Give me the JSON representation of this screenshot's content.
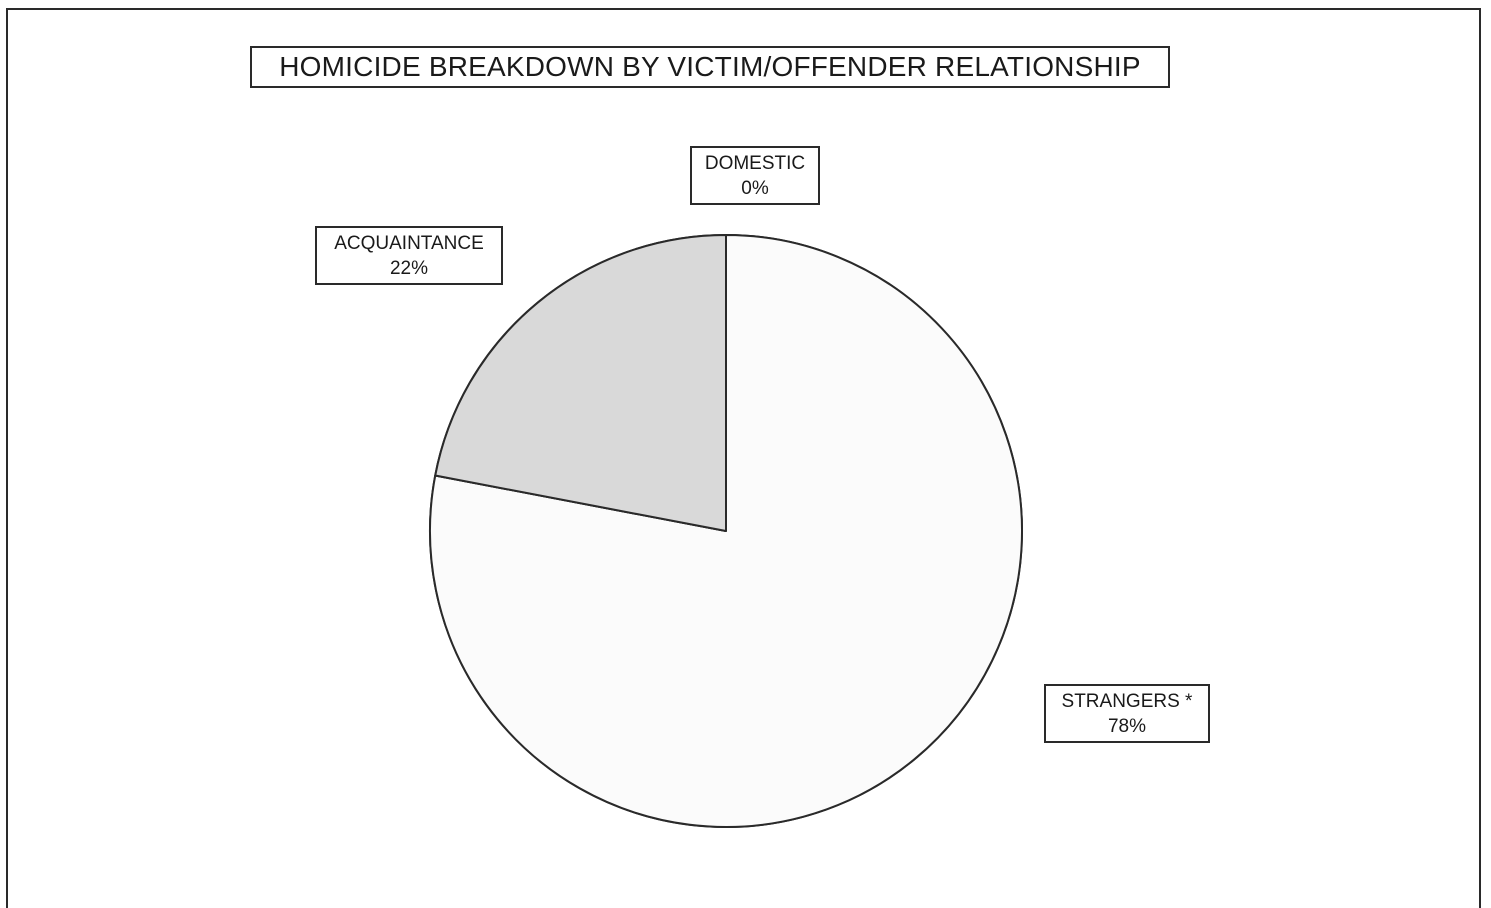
{
  "chart_data": {
    "type": "pie",
    "title": "HOMICIDE BREAKDOWN BY VICTIM/OFFENDER RELATIONSHIP",
    "slices": [
      {
        "label": "STRANGERS *",
        "value": 78,
        "value_label": "78%",
        "color": "#fbfbfb"
      },
      {
        "label": "DOMESTIC",
        "value": 0,
        "value_label": "0%",
        "color": "#ffffff"
      },
      {
        "label": "ACQUAINTANCE",
        "value": 22,
        "value_label": "22%",
        "color": "#d9d9d9"
      }
    ],
    "start_angle_deg": 0,
    "direction": "clockwise",
    "outline_color": "#2a2a2a"
  }
}
